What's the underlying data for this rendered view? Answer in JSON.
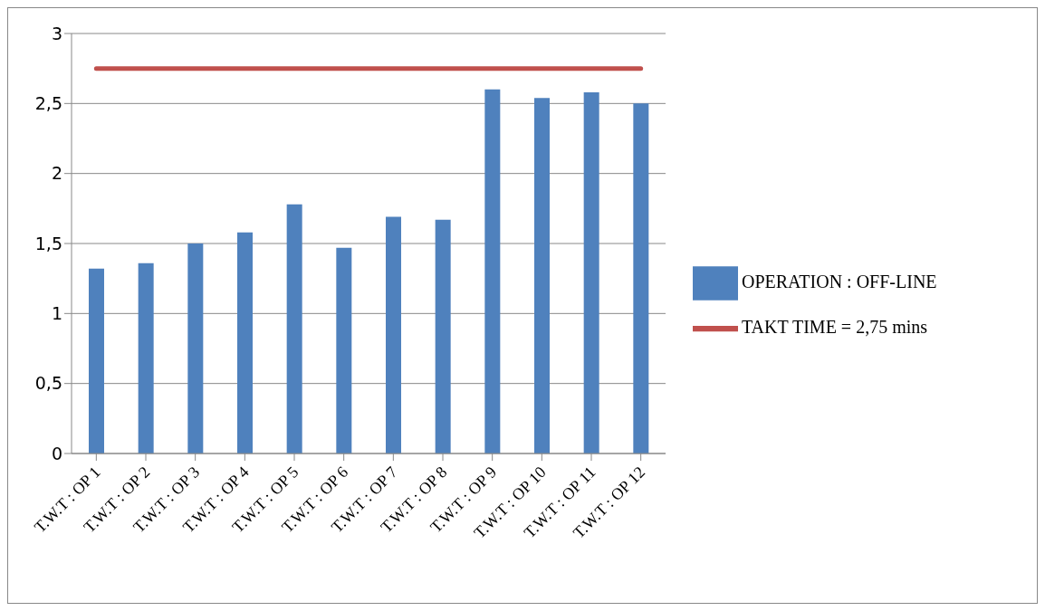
{
  "chart_data": {
    "type": "bar",
    "categories": [
      "T.W.T : OP 1",
      "T.W.T : OP 2",
      "T.W.T : OP 3",
      "T.W.T : OP 4",
      "T.W.T : OP 5",
      "T.W.T : OP 6",
      "T.W.T : OP 7",
      "T.W.T : OP 8",
      "T.W.T : OP 9",
      "T.W.T : OP 10",
      "T.W.T : OP 11",
      "T.W.T : OP 12"
    ],
    "series": [
      {
        "name": "OPERATION : OFF-LINE",
        "color": "#4f81bd",
        "values": [
          1.32,
          1.36,
          1.5,
          1.58,
          1.78,
          1.47,
          1.69,
          1.67,
          2.6,
          2.54,
          2.58,
          2.5
        ]
      },
      {
        "name": "TAKT TIME = 2,75 mins",
        "type": "line",
        "color": "#c0504d",
        "values": [
          2.75,
          2.75,
          2.75,
          2.75,
          2.75,
          2.75,
          2.75,
          2.75,
          2.75,
          2.75,
          2.75,
          2.75
        ]
      }
    ],
    "ylim": [
      0,
      3
    ],
    "yticks": [
      0,
      {
        "value": 0.5,
        "label": "0,5"
      },
      1,
      {
        "value": 1.5,
        "label": "1,5"
      },
      2,
      {
        "value": 2.5,
        "label": "2,5"
      },
      3
    ],
    "grid": "y",
    "legend": "right",
    "marker": "none"
  }
}
